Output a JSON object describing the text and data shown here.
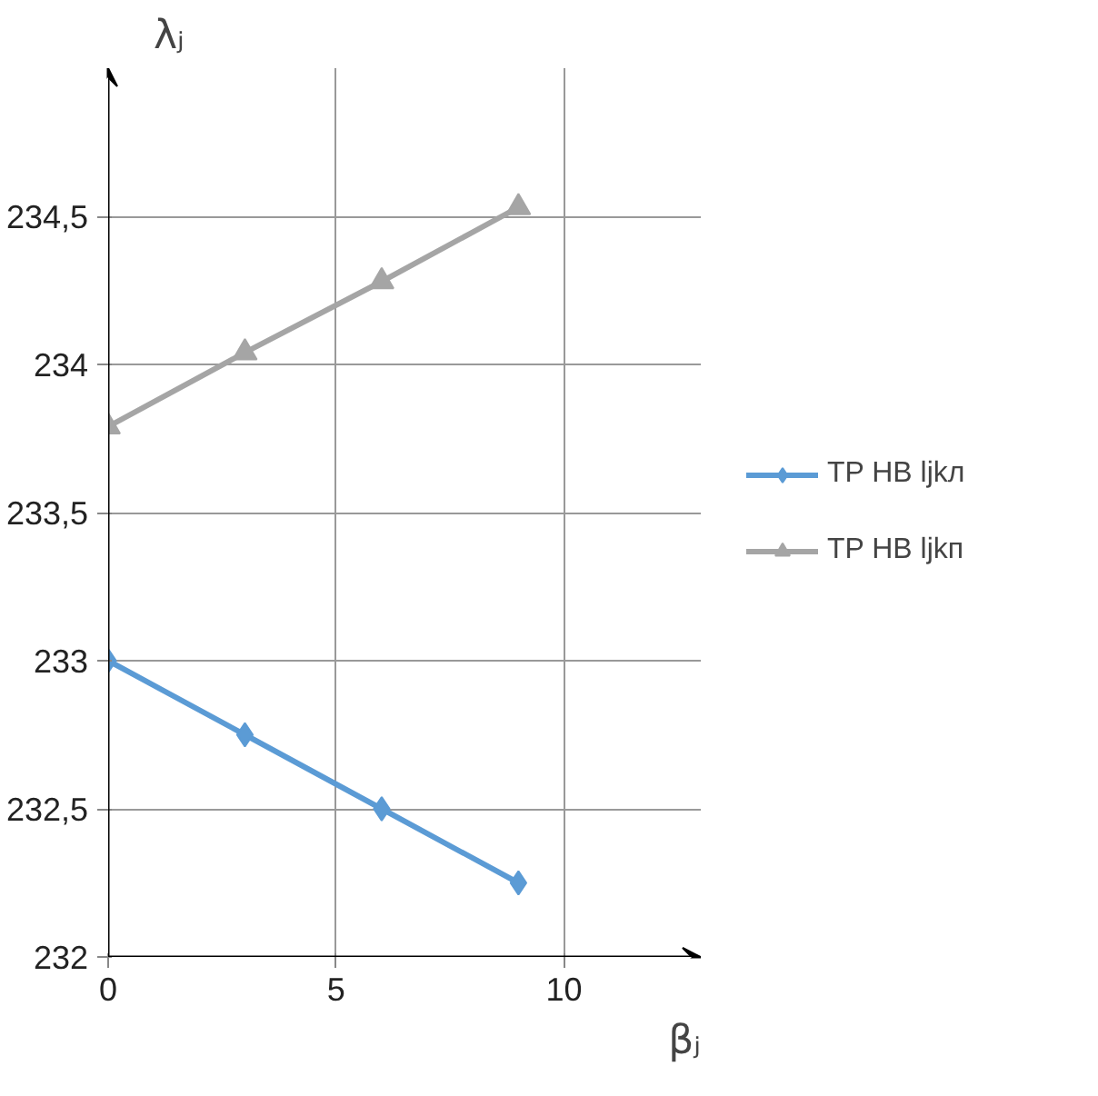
{
  "chart_data": {
    "type": "line",
    "xlabel": "βⱼ",
    "ylabel": "λⱼ",
    "x": [
      0,
      3,
      6,
      9
    ],
    "series": [
      {
        "name": "TP HB ljkл",
        "color": "#5b9bd5",
        "values": [
          233,
          232.75,
          232.5,
          232.25
        ],
        "marker": "diamond"
      },
      {
        "name": "TP HB ljkп",
        "color": "#a5a5a5",
        "values": [
          233.79,
          234.04,
          234.28,
          234.53
        ],
        "marker": "triangle"
      }
    ],
    "xlim": [
      0,
      13
    ],
    "ylim": [
      232,
      235
    ],
    "xticks": [
      0,
      5,
      10
    ],
    "yticks": [
      232,
      {
        "value": 232.5,
        "label": "232,5"
      },
      233,
      {
        "value": 233.5,
        "label": "233,5"
      },
      234,
      {
        "value": 234.5,
        "label": "234,5"
      }
    ],
    "grid": true,
    "legend": "right",
    "line_style": "solid"
  }
}
